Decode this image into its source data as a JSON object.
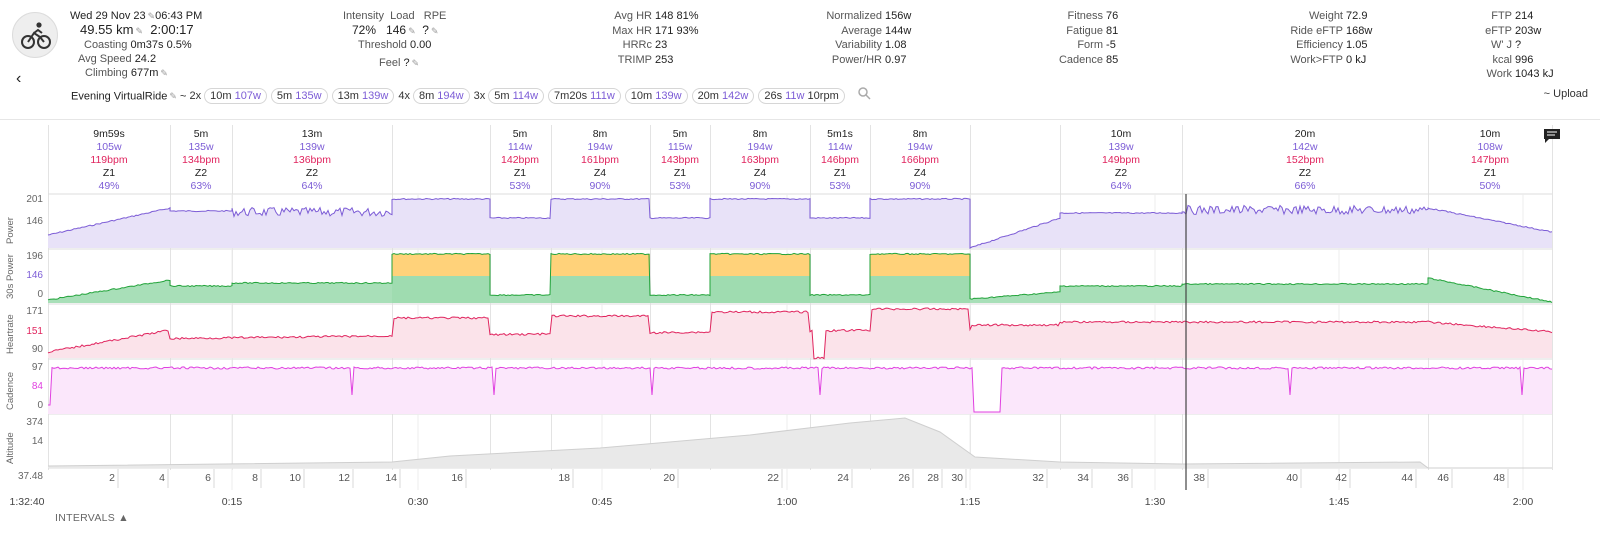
{
  "activity": {
    "date": "Wed 29 Nov 23",
    "time": "06:43 PM",
    "distance": "49.55 km",
    "duration": "2:00:17",
    "coasting_label": "Coasting",
    "coasting_value": "0m37s",
    "coasting_pct": "0.5%",
    "avg_speed_label": "Avg Speed",
    "avg_speed_value": "24.2",
    "climbing_label": "Climbing",
    "climbing_value": "677m",
    "name": "Evening VirtualRide",
    "tilde": "~",
    "upload_label": "~ Upload"
  },
  "load": {
    "intensity_label": "Intensity",
    "load_label": "Load",
    "rpe_label": "RPE",
    "intensity_value": "72%",
    "load_value": "146",
    "rpe_value": "?",
    "threshold_label": "Threshold",
    "threshold_value": "0.00",
    "feel_label": "Feel",
    "feel_value": "?"
  },
  "hr_stats": [
    {
      "label": "Avg HR",
      "value": "148",
      "extra": "81%"
    },
    {
      "label": "Max HR",
      "value": "171",
      "extra": "93%"
    },
    {
      "label": "HRRc",
      "value": "23",
      "extra": ""
    },
    {
      "label": "TRIMP",
      "value": "253",
      "extra": ""
    }
  ],
  "power_stats": [
    {
      "label": "Normalized",
      "value": "156w"
    },
    {
      "label": "Average",
      "value": "144w"
    },
    {
      "label": "Variability",
      "value": "1.08"
    },
    {
      "label": "Power/HR",
      "value": "0.97"
    }
  ],
  "fitness_stats": [
    {
      "label": "Fitness",
      "value": "76"
    },
    {
      "label": "Fatigue",
      "value": "81"
    },
    {
      "label": "Form",
      "value": "-5"
    },
    {
      "label": "Cadence",
      "value": "85"
    }
  ],
  "weight_stats": [
    {
      "label": "Weight",
      "value": "72.9"
    },
    {
      "label": "Ride eFTP",
      "value": "168w"
    },
    {
      "label": "Efficiency",
      "value": "1.05"
    },
    {
      "label": "Work>FTP",
      "value": "0 kJ"
    }
  ],
  "ftp_stats": [
    {
      "label": "FTP",
      "value": "214"
    },
    {
      "label": "eFTP",
      "value": "203w"
    },
    {
      "label": "W' J",
      "value": "?"
    },
    {
      "label": "kcal",
      "value": "996"
    },
    {
      "label": "Work",
      "value": "1043 kJ"
    }
  ],
  "interval_chips": [
    {
      "rep": "2x",
      "dur": "10m",
      "w": "107w"
    },
    {
      "rep": "",
      "dur": "5m",
      "w": "135w"
    },
    {
      "rep": "",
      "dur": "13m",
      "w": "139w"
    },
    {
      "rep": "4x",
      "dur": "8m",
      "w": "194w"
    },
    {
      "rep": "3x",
      "dur": "5m",
      "w": "114w"
    },
    {
      "rep": "",
      "dur": "7m20s",
      "w": "111w"
    },
    {
      "rep": "",
      "dur": "10m",
      "w": "139w"
    },
    {
      "rep": "",
      "dur": "20m",
      "w": "142w"
    },
    {
      "rep": "",
      "dur": "26s",
      "w": "11w",
      "extra": "10rpm"
    }
  ],
  "segments": [
    {
      "dur": "9m59s",
      "w": "105w",
      "bpm": "119bpm",
      "zone": "Z1",
      "pct": "49%"
    },
    {
      "dur": "5m",
      "w": "135w",
      "bpm": "134bpm",
      "zone": "Z2",
      "pct": "63%"
    },
    {
      "dur": "13m",
      "w": "139w",
      "bpm": "136bpm",
      "zone": "Z2",
      "pct": "64%"
    },
    {
      "dur": "5m",
      "w": "114w",
      "bpm": "142bpm",
      "zone": "Z1",
      "pct": "53%"
    },
    {
      "dur": "8m",
      "w": "194w",
      "bpm": "161bpm",
      "zone": "Z4",
      "pct": "90%"
    },
    {
      "dur": "5m",
      "w": "115w",
      "bpm": "143bpm",
      "zone": "Z1",
      "pct": "53%"
    },
    {
      "dur": "8m",
      "w": "194w",
      "bpm": "163bpm",
      "zone": "Z4",
      "pct": "90%"
    },
    {
      "dur": "5m1s",
      "w": "114w",
      "bpm": "146bpm",
      "zone": "Z1",
      "pct": "53%"
    },
    {
      "dur": "8m",
      "w": "194w",
      "bpm": "166bpm",
      "zone": "Z4",
      "pct": "90%"
    },
    {
      "dur": "10m",
      "w": "139w",
      "bpm": "149bpm",
      "zone": "Z2",
      "pct": "64%"
    },
    {
      "dur": "20m",
      "w": "142w",
      "bpm": "152bpm",
      "zone": "Z2",
      "pct": "66%"
    },
    {
      "dur": "10m",
      "w": "108w",
      "bpm": "147bpm",
      "zone": "Z1",
      "pct": "50%"
    }
  ],
  "panels": {
    "power": {
      "title": "Power",
      "ticks": [
        "201",
        "146"
      ]
    },
    "power30": {
      "title": "30s Power",
      "ticks": [
        "196",
        "146",
        "0"
      ]
    },
    "hr": {
      "title": "Heartrate",
      "ticks": [
        "171",
        "151",
        "90"
      ]
    },
    "cadence": {
      "title": "Cadence",
      "ticks": [
        "97",
        "84",
        "0"
      ]
    },
    "altitude": {
      "title": "Altitude",
      "ticks": [
        "374",
        "14",
        "37.48"
      ]
    }
  },
  "laps": [
    "2",
    "4",
    "6",
    "8",
    "10",
    "12",
    "14",
    "16",
    "18",
    "20",
    "22",
    "24",
    "26",
    "28",
    "30",
    "32",
    "34",
    "36",
    "38",
    "40",
    "42",
    "44",
    "46",
    "48"
  ],
  "x_axis": {
    "start": "1:32:40",
    "ticks": [
      "0:15",
      "0:30",
      "0:45",
      "1:00",
      "1:15",
      "1:30",
      "1:45",
      "2:00"
    ]
  },
  "intervals_label": "INTERVALS ▲",
  "colors": {
    "power": "#7c5cd6",
    "hr": "#e0245e",
    "cadence": "#e040e0",
    "green": "#22a33a",
    "yellow": "#ffd27a"
  }
}
